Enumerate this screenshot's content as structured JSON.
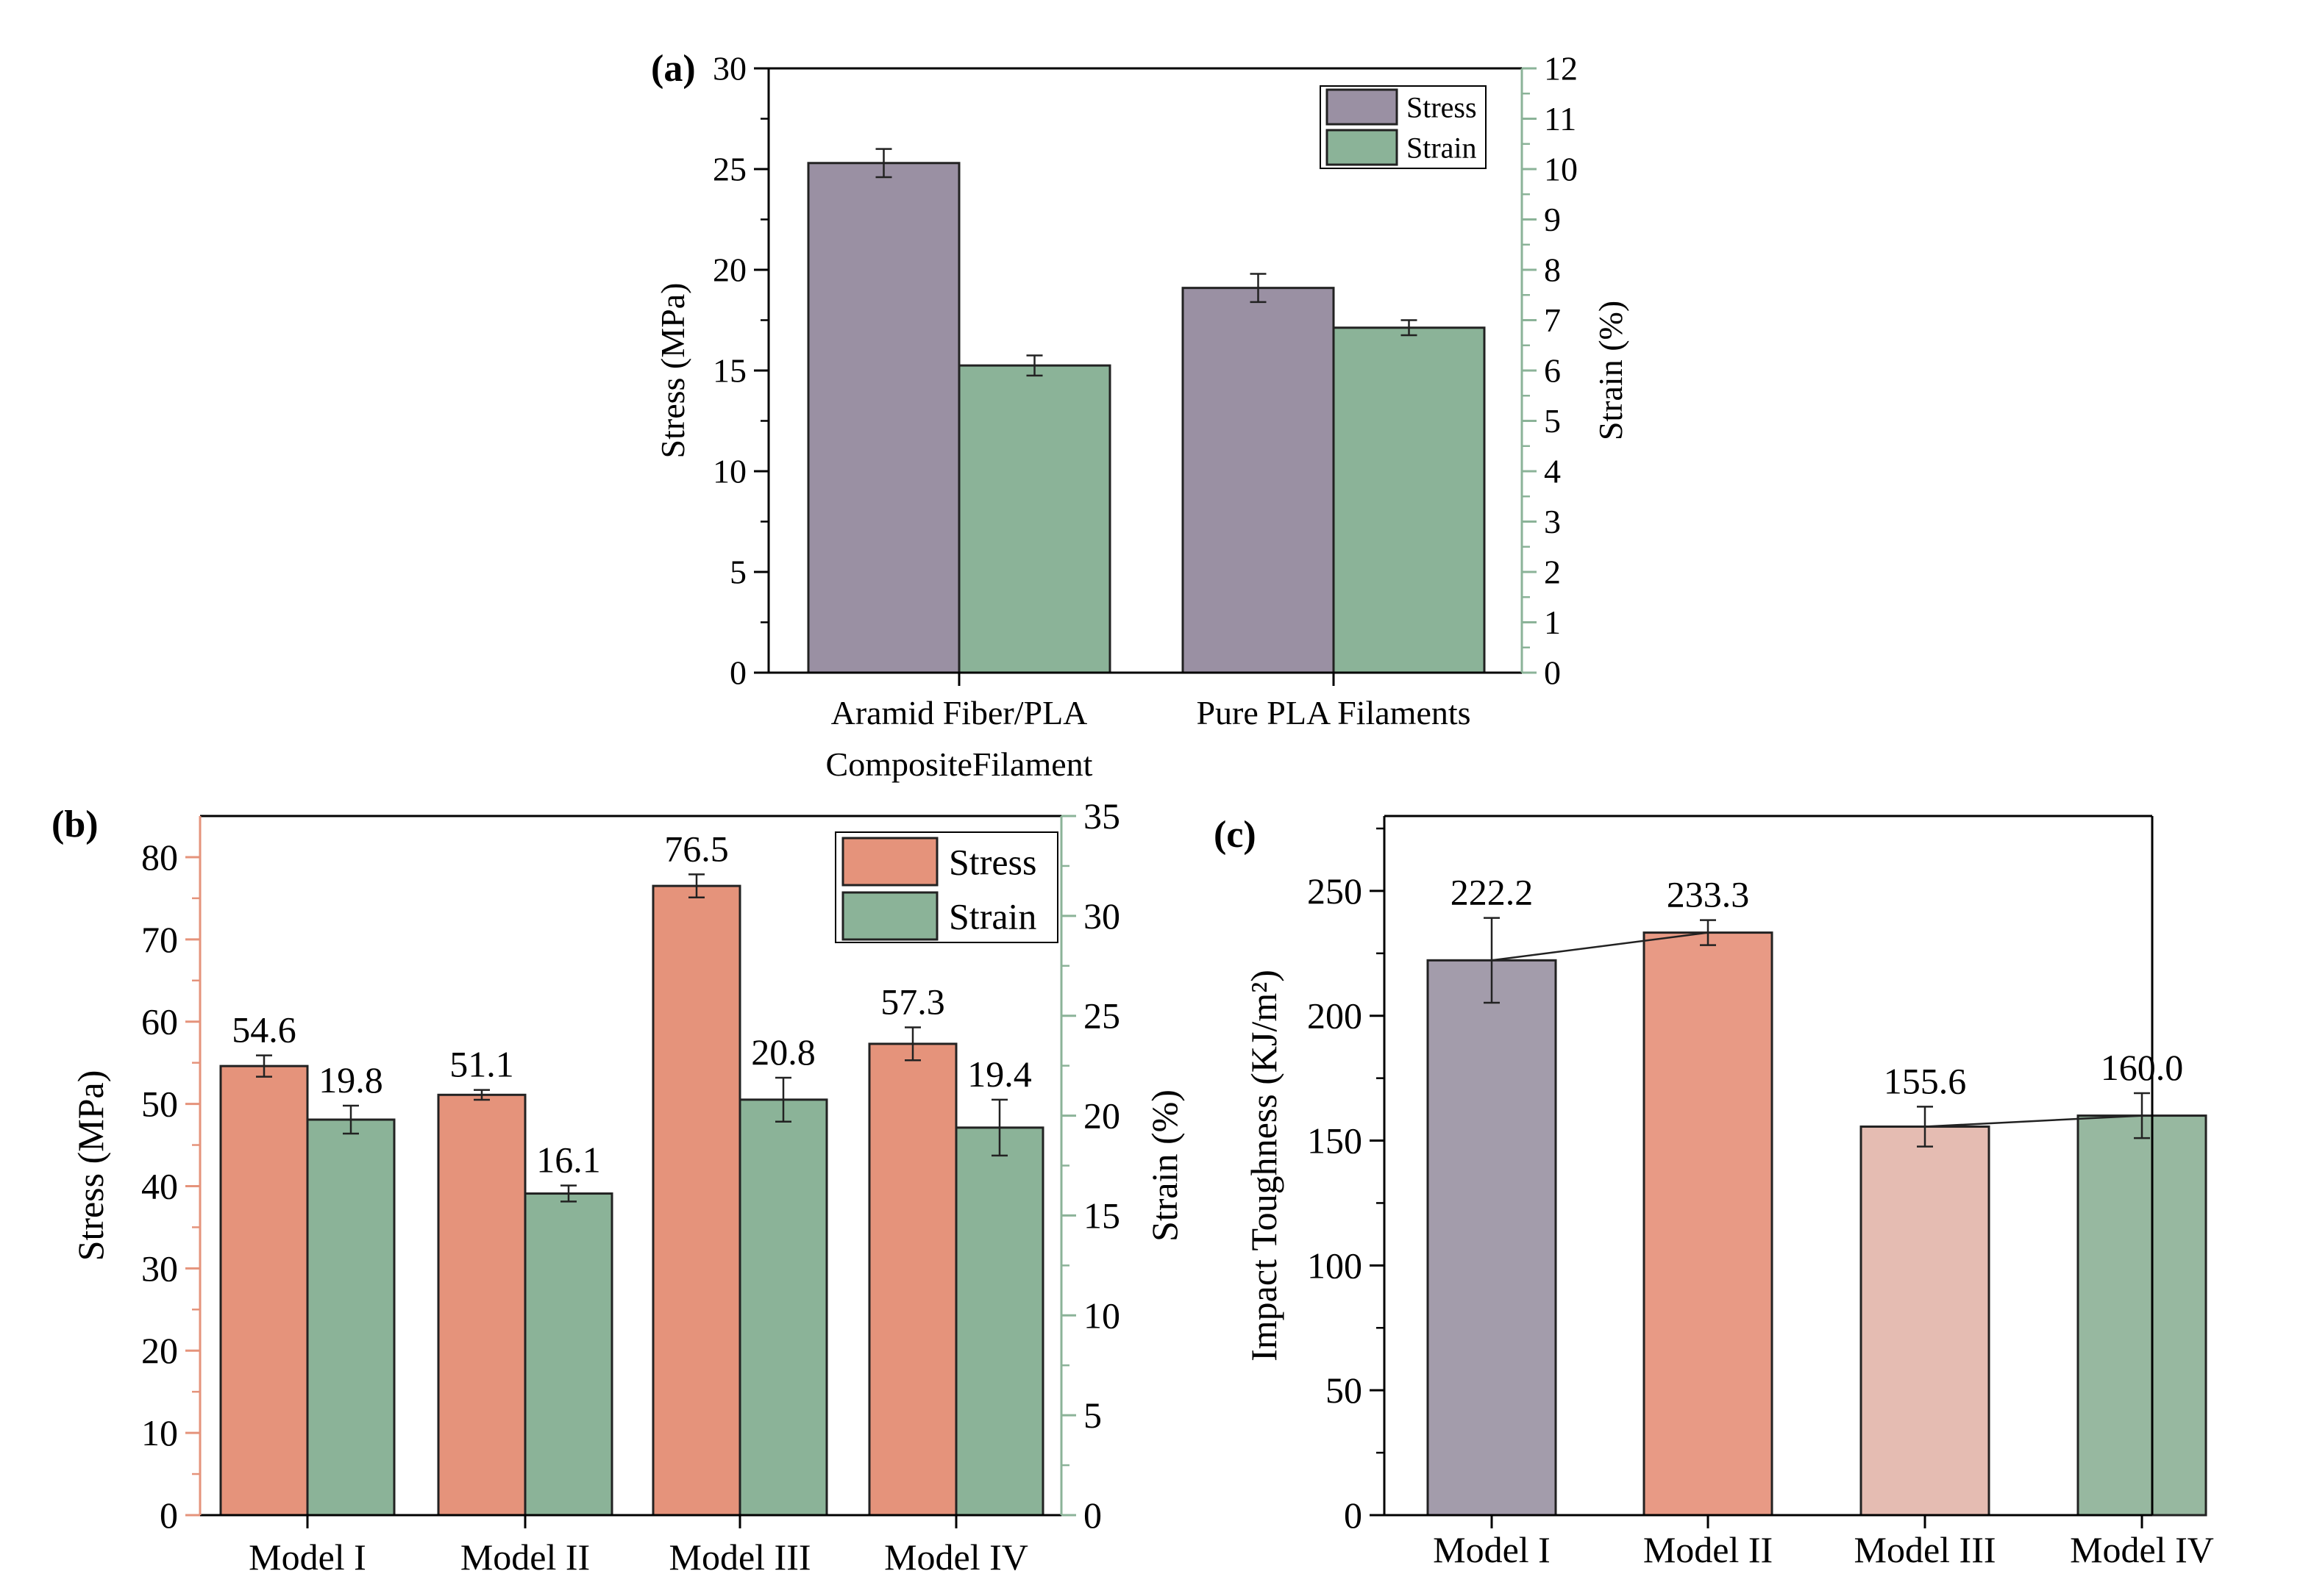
{
  "panels": {
    "a": {
      "label": "(a)"
    },
    "b": {
      "label": "(b)"
    },
    "c": {
      "label": "(c)"
    }
  },
  "chart_data": [
    {
      "id": "a",
      "type": "bar",
      "categories": [
        [
          "Aramid Fiber/PLA",
          "CompositeFilament"
        ],
        [
          "Pure PLA Filaments"
        ]
      ],
      "series": [
        {
          "name": "Stress",
          "axis": "left",
          "color": "#9a90a3",
          "values": [
            25.3,
            19.1
          ],
          "errors": [
            0.7,
            0.7
          ]
        },
        {
          "name": "Strain",
          "axis": "right",
          "color": "#8bb398",
          "values": [
            6.1,
            6.85
          ],
          "errors": [
            0.2,
            0.15
          ]
        }
      ],
      "ylabel": "Stress (MPa)",
      "y2label": "Strain (%)",
      "ylim": [
        0,
        30
      ],
      "y2lim": [
        0,
        12
      ],
      "yticks": [
        "0",
        "5",
        "10",
        "15",
        "20",
        "25",
        "30"
      ],
      "y2ticks": [
        "0",
        "1",
        "2",
        "3",
        "4",
        "5",
        "6",
        "7",
        "8",
        "9",
        "10",
        "11",
        "12"
      ],
      "legend": "top-right",
      "grid": false
    },
    {
      "id": "b",
      "type": "bar",
      "categories": [
        "Model I",
        "Model II",
        "Model III",
        "Model IV"
      ],
      "series": [
        {
          "name": "Stress",
          "axis": "left",
          "color": "#e5937b",
          "values": [
            54.6,
            51.1,
            76.5,
            57.3
          ],
          "errors": [
            1.3,
            0.6,
            1.4,
            2.0
          ],
          "labels": [
            "54.6",
            "51.1",
            "76.5",
            "57.3"
          ]
        },
        {
          "name": "Strain",
          "axis": "right",
          "color": "#8bb398",
          "values": [
            19.8,
            16.1,
            20.8,
            19.4
          ],
          "errors": [
            0.7,
            0.4,
            1.1,
            1.4
          ],
          "labels": [
            "19.8",
            "16.1",
            "20.8",
            "19.4"
          ]
        }
      ],
      "ylabel": "Stress (MPa)",
      "y2label": "Strain (%)",
      "ylim": [
        0,
        85
      ],
      "y2lim": [
        0,
        35
      ],
      "yticks": [
        "0",
        "10",
        "20",
        "30",
        "40",
        "50",
        "60",
        "70",
        "80"
      ],
      "y2ticks": [
        "0",
        "5",
        "10",
        "15",
        "20",
        "25",
        "30",
        "35"
      ],
      "legend": "top-right",
      "grid": false
    },
    {
      "id": "c",
      "type": "bar",
      "categories": [
        "Model I",
        "Model II",
        "Model III",
        "Model IV"
      ],
      "series": [
        {
          "name": "",
          "values": [
            222.2,
            233.3,
            155.6,
            160.0
          ],
          "errors": [
            17,
            5,
            8,
            9
          ],
          "labels": [
            "222.2",
            "233.3",
            "155.6",
            "160.0"
          ],
          "colors": [
            "#a39cab",
            "#e89a85",
            "#e5bcb2",
            "#97b8a0"
          ]
        }
      ],
      "connectors": [
        [
          0,
          1
        ],
        [
          2,
          3
        ]
      ],
      "ylabel": "Impact Toughness (KJ/m²)",
      "ylim": [
        0,
        280
      ],
      "yticks": [
        "0",
        "50",
        "100",
        "150",
        "200",
        "250"
      ],
      "grid": false
    }
  ]
}
